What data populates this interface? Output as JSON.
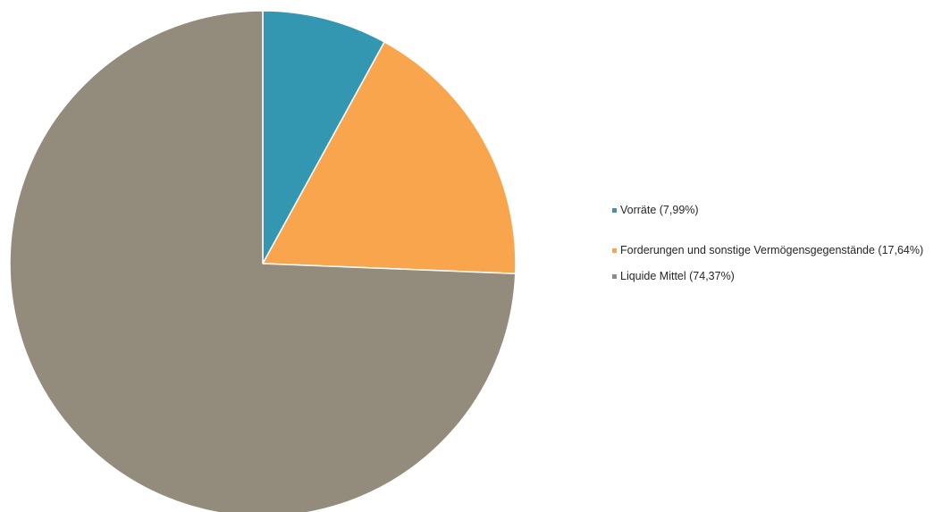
{
  "chart_data": {
    "type": "pie",
    "title": "",
    "start_angle_deg": 0,
    "direction": "clockwise",
    "legend_position": "right",
    "slices": [
      {
        "label": "Vorräte (7,99%)",
        "value": 7.99,
        "color": "#3497b2"
      },
      {
        "label": "Forderungen und sonstige Vermögensgegenstände (17,64%)",
        "value": 17.64,
        "color": "#f9a54e"
      },
      {
        "label": "Liquide Mittel (74,37%)",
        "value": 74.37,
        "color": "#938b7c"
      }
    ]
  }
}
